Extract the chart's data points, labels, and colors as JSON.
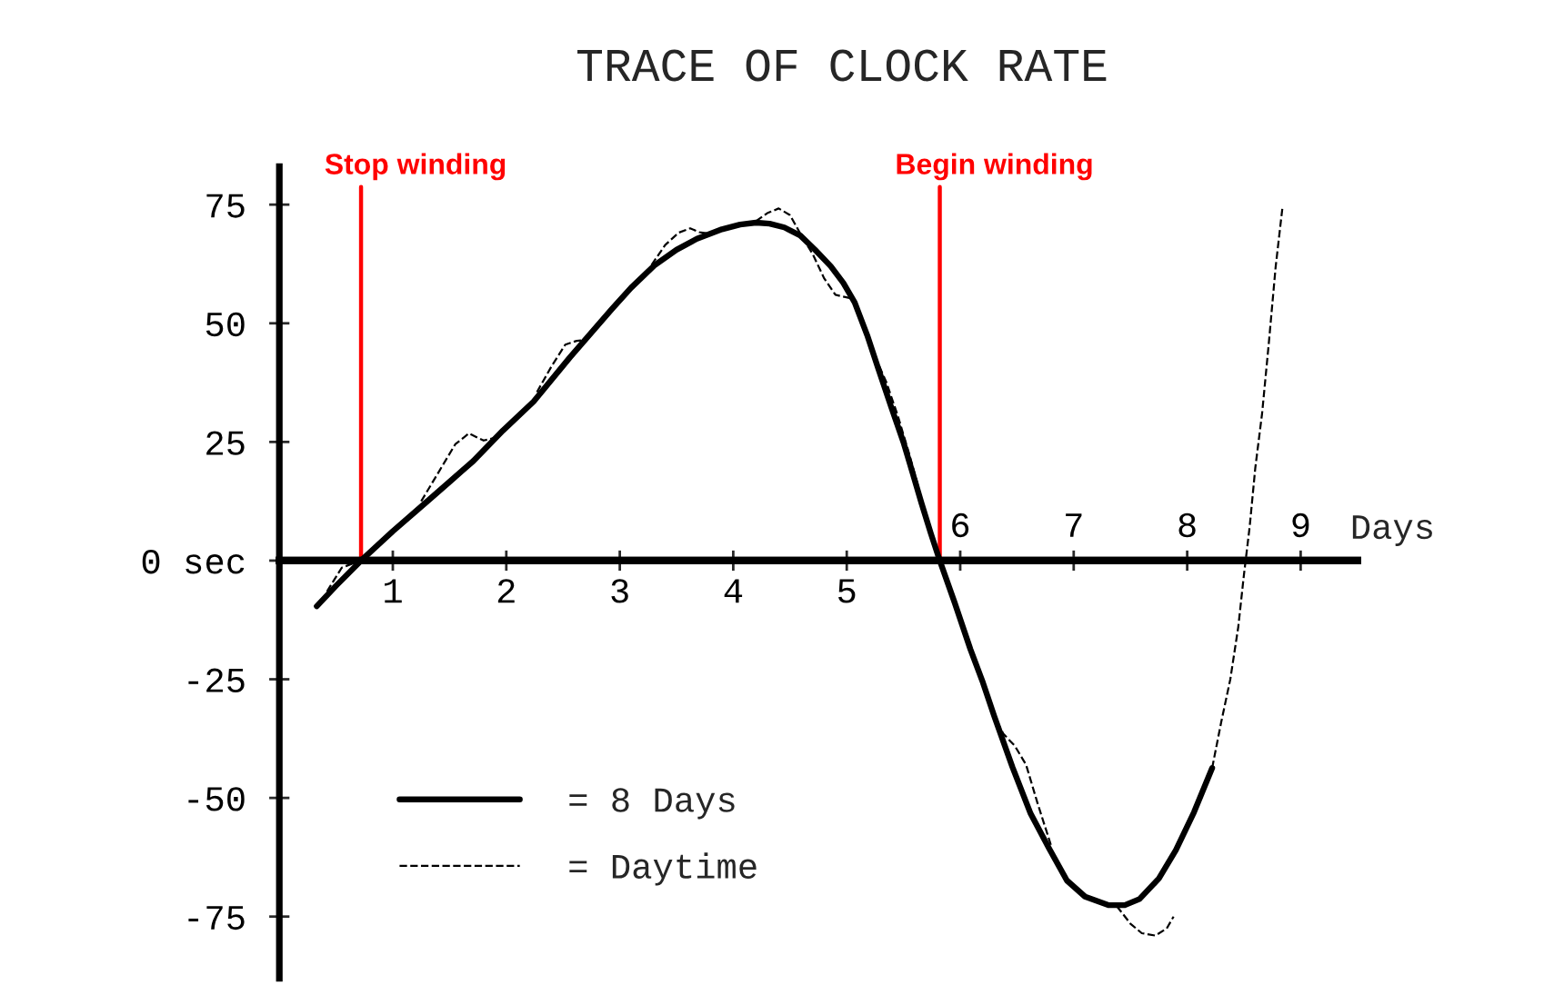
{
  "chart_data": {
    "type": "line",
    "title": "TRACE OF CLOCK RATE",
    "xlabel": "Days",
    "xlim": [
      0,
      9.5
    ],
    "xticks": [
      1,
      2,
      3,
      4,
      5
    ],
    "x2lim": [
      0,
      9.5
    ],
    "x2ticks": [
      6,
      7,
      8,
      9
    ],
    "ylim": [
      -88,
      83
    ],
    "yticks": [
      -75,
      -50,
      -25,
      {
        "value": 0,
        "label": "0 sec"
      },
      25,
      50,
      75
    ],
    "legend": "bottom left",
    "ref_lines": [
      {
        "axis": "x",
        "value": 0.72,
        "label": "Stop winding",
        "color": "#ff0000"
      },
      {
        "axis": "x",
        "value": 5.82,
        "label": "Begin winding",
        "color": "#ff0000"
      }
    ],
    "series": [
      {
        "name": "= 8 Days",
        "color": "#000000",
        "line_style": "solid",
        "x": [
          0.33,
          0.5,
          0.72,
          1.0,
          1.28,
          1.5,
          1.71,
          1.97,
          2.24,
          2.56,
          2.93,
          3.1,
          3.31,
          3.5,
          3.68,
          3.9,
          4.06,
          4.2,
          4.32,
          4.45,
          4.59,
          4.72,
          4.86,
          4.97,
          5.07,
          5.18,
          5.28,
          5.39,
          5.5,
          5.58,
          5.66,
          5.74,
          5.82,
          5.95,
          6.09,
          6.2,
          6.3,
          6.46,
          6.62,
          6.78,
          6.94,
          7.1,
          7.31,
          7.45,
          7.58,
          7.75,
          7.9,
          8.06,
          8.22
        ],
        "values": [
          -9.6,
          -5.3,
          0,
          6.2,
          12,
          16.6,
          21,
          27.4,
          33.5,
          42.8,
          53,
          57.5,
          62.3,
          65.5,
          67.8,
          69.8,
          70.8,
          71.2,
          71,
          70.2,
          68.5,
          65.5,
          62,
          58.5,
          54.4,
          47.5,
          40.3,
          32.5,
          24.9,
          18.5,
          12,
          5.8,
          0,
          -8.8,
          -18.7,
          -25.7,
          -32.8,
          -43.5,
          -53.3,
          -60.5,
          -67.4,
          -70.8,
          -72.6,
          -72.6,
          -71.3,
          -67,
          -61,
          -53,
          -43.7
        ]
      },
      {
        "name": "= Daytime",
        "color": "#000000",
        "line_style": "dashed",
        "x": [
          0.42,
          0.55,
          0.65,
          0.9,
          1.25,
          1.4,
          1.55,
          1.67,
          1.8,
          1.92,
          2.1,
          2.27,
          2.4,
          2.52,
          2.62,
          2.7,
          2.78,
          3.0,
          3.28,
          3.4,
          3.52,
          3.62,
          3.7,
          3.78,
          4.0,
          4.2,
          4.3,
          4.4,
          4.5,
          4.6,
          4.7,
          4.8,
          4.9,
          5.05,
          5.15,
          5.25,
          5.35,
          5.45,
          5.55,
          5.62,
          5.66,
          6.0,
          6.28,
          6.38,
          6.48,
          6.58,
          6.68,
          6.8,
          7.1,
          7.38,
          7.5,
          7.6,
          7.72,
          7.82,
          7.88,
          8.0,
          8.22,
          8.3,
          8.38,
          8.45,
          8.5,
          8.55,
          8.6,
          8.66,
          8.72,
          8.78,
          8.84
        ],
        "values": [
          -6.5,
          -1.5,
          -0.6,
          null,
          12.5,
          18.5,
          24.5,
          26.8,
          25.3,
          26,
          null,
          35.5,
          41,
          45.5,
          46.3,
          46.5,
          48.5,
          null,
          62.3,
          66.5,
          69.1,
          70,
          69.2,
          68.9,
          null,
          71.5,
          73.2,
          74.2,
          72.8,
          68.5,
          64.6,
          59.5,
          56,
          55.2,
          null,
          43,
          37.5,
          30.5,
          22.5,
          16.5,
          12.5,
          null,
          -32,
          -36.5,
          -39,
          -43,
          -51,
          -60,
          null,
          -72.8,
          -76.5,
          -78.5,
          -79,
          -77.5,
          -75,
          null,
          -43.7,
          -34,
          -25,
          -14,
          -3,
          7,
          19.5,
          31,
          46,
          62,
          74.5
        ]
      }
    ]
  }
}
